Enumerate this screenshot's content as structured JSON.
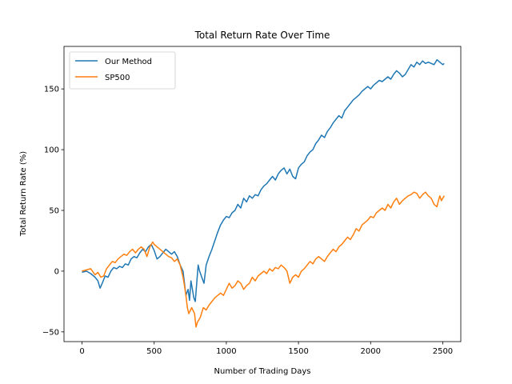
{
  "chart_data": {
    "type": "line",
    "title": "Total Return Rate Over Time",
    "xlabel": "Number of Trading Days",
    "ylabel": "Total Return Rate (%)",
    "xlim": [
      -125,
      2625
    ],
    "ylim": [
      -58,
      185
    ],
    "xticks": [
      0,
      500,
      1000,
      1500,
      2000,
      2500
    ],
    "yticks": [
      -50,
      0,
      50,
      100,
      150
    ],
    "grid": false,
    "legend_position": "top-left",
    "series": [
      {
        "name": "Our Method",
        "color": "#1f77b4",
        "points": [
          [
            0,
            -1
          ],
          [
            30,
            0
          ],
          [
            60,
            -2
          ],
          [
            90,
            -5
          ],
          [
            110,
            -8
          ],
          [
            125,
            -14
          ],
          [
            140,
            -10
          ],
          [
            160,
            -4
          ],
          [
            180,
            -5
          ],
          [
            200,
            0
          ],
          [
            220,
            3
          ],
          [
            240,
            2
          ],
          [
            260,
            4
          ],
          [
            280,
            3
          ],
          [
            300,
            6
          ],
          [
            320,
            5
          ],
          [
            340,
            10
          ],
          [
            360,
            12
          ],
          [
            380,
            11
          ],
          [
            400,
            15
          ],
          [
            420,
            18
          ],
          [
            440,
            16
          ],
          [
            460,
            20
          ],
          [
            480,
            22
          ],
          [
            500,
            17
          ],
          [
            520,
            10
          ],
          [
            540,
            12
          ],
          [
            560,
            15
          ],
          [
            580,
            18
          ],
          [
            600,
            16
          ],
          [
            620,
            14
          ],
          [
            640,
            16
          ],
          [
            660,
            12
          ],
          [
            680,
            5
          ],
          [
            700,
            0
          ],
          [
            710,
            -10
          ],
          [
            720,
            -20
          ],
          [
            735,
            -15
          ],
          [
            745,
            -24
          ],
          [
            755,
            -8
          ],
          [
            765,
            -15
          ],
          [
            775,
            -22
          ],
          [
            785,
            -25
          ],
          [
            795,
            -10
          ],
          [
            805,
            5
          ],
          [
            815,
            0
          ],
          [
            830,
            -5
          ],
          [
            845,
            -10
          ],
          [
            860,
            5
          ],
          [
            880,
            12
          ],
          [
            900,
            18
          ],
          [
            920,
            25
          ],
          [
            940,
            32
          ],
          [
            960,
            38
          ],
          [
            980,
            42
          ],
          [
            1000,
            45
          ],
          [
            1020,
            44
          ],
          [
            1040,
            48
          ],
          [
            1060,
            50
          ],
          [
            1080,
            55
          ],
          [
            1100,
            52
          ],
          [
            1120,
            60
          ],
          [
            1140,
            57
          ],
          [
            1160,
            62
          ],
          [
            1180,
            60
          ],
          [
            1200,
            63
          ],
          [
            1220,
            62
          ],
          [
            1240,
            67
          ],
          [
            1260,
            70
          ],
          [
            1280,
            72
          ],
          [
            1300,
            75
          ],
          [
            1320,
            78
          ],
          [
            1340,
            75
          ],
          [
            1360,
            80
          ],
          [
            1380,
            83
          ],
          [
            1400,
            85
          ],
          [
            1420,
            80
          ],
          [
            1440,
            84
          ],
          [
            1460,
            78
          ],
          [
            1480,
            76
          ],
          [
            1500,
            85
          ],
          [
            1520,
            88
          ],
          [
            1540,
            90
          ],
          [
            1560,
            95
          ],
          [
            1580,
            98
          ],
          [
            1600,
            100
          ],
          [
            1620,
            105
          ],
          [
            1640,
            108
          ],
          [
            1660,
            112
          ],
          [
            1680,
            110
          ],
          [
            1700,
            115
          ],
          [
            1720,
            118
          ],
          [
            1740,
            122
          ],
          [
            1760,
            125
          ],
          [
            1780,
            128
          ],
          [
            1800,
            126
          ],
          [
            1820,
            132
          ],
          [
            1840,
            135
          ],
          [
            1860,
            138
          ],
          [
            1880,
            141
          ],
          [
            1900,
            143
          ],
          [
            1920,
            145
          ],
          [
            1940,
            148
          ],
          [
            1960,
            150
          ],
          [
            1980,
            152
          ],
          [
            2000,
            150
          ],
          [
            2020,
            153
          ],
          [
            2040,
            155
          ],
          [
            2060,
            157
          ],
          [
            2080,
            156
          ],
          [
            2100,
            158
          ],
          [
            2120,
            160
          ],
          [
            2140,
            158
          ],
          [
            2160,
            162
          ],
          [
            2180,
            165
          ],
          [
            2200,
            163
          ],
          [
            2220,
            160
          ],
          [
            2240,
            162
          ],
          [
            2260,
            166
          ],
          [
            2280,
            170
          ],
          [
            2300,
            168
          ],
          [
            2320,
            172
          ],
          [
            2340,
            170
          ],
          [
            2360,
            173
          ],
          [
            2380,
            171
          ],
          [
            2400,
            172
          ],
          [
            2420,
            171
          ],
          [
            2440,
            170
          ],
          [
            2460,
            174
          ],
          [
            2480,
            172
          ],
          [
            2500,
            170
          ],
          [
            2510,
            171
          ]
        ]
      },
      {
        "name": "SP500",
        "color": "#ff7f0e",
        "points": [
          [
            0,
            0
          ],
          [
            30,
            1
          ],
          [
            60,
            2
          ],
          [
            90,
            -3
          ],
          [
            110,
            -1
          ],
          [
            130,
            -5
          ],
          [
            150,
            -4
          ],
          [
            170,
            2
          ],
          [
            190,
            5
          ],
          [
            210,
            8
          ],
          [
            230,
            7
          ],
          [
            250,
            10
          ],
          [
            270,
            12
          ],
          [
            290,
            14
          ],
          [
            310,
            13
          ],
          [
            330,
            16
          ],
          [
            350,
            18
          ],
          [
            370,
            15
          ],
          [
            390,
            18
          ],
          [
            410,
            20
          ],
          [
            430,
            18
          ],
          [
            450,
            12
          ],
          [
            470,
            20
          ],
          [
            490,
            24
          ],
          [
            500,
            22
          ],
          [
            520,
            20
          ],
          [
            540,
            18
          ],
          [
            560,
            16
          ],
          [
            580,
            14
          ],
          [
            600,
            12
          ],
          [
            620,
            11
          ],
          [
            640,
            8
          ],
          [
            660,
            10
          ],
          [
            680,
            5
          ],
          [
            700,
            -5
          ],
          [
            710,
            -12
          ],
          [
            720,
            -20
          ],
          [
            730,
            -30
          ],
          [
            740,
            -35
          ],
          [
            760,
            -30
          ],
          [
            780,
            -35
          ],
          [
            790,
            -46
          ],
          [
            800,
            -42
          ],
          [
            820,
            -38
          ],
          [
            840,
            -30
          ],
          [
            860,
            -32
          ],
          [
            880,
            -28
          ],
          [
            900,
            -25
          ],
          [
            920,
            -22
          ],
          [
            940,
            -20
          ],
          [
            960,
            -18
          ],
          [
            980,
            -20
          ],
          [
            1000,
            -15
          ],
          [
            1020,
            -10
          ],
          [
            1040,
            -14
          ],
          [
            1060,
            -12
          ],
          [
            1080,
            -8
          ],
          [
            1100,
            -10
          ],
          [
            1120,
            -15
          ],
          [
            1140,
            -12
          ],
          [
            1160,
            -10
          ],
          [
            1180,
            -5
          ],
          [
            1200,
            -8
          ],
          [
            1220,
            -4
          ],
          [
            1240,
            -2
          ],
          [
            1260,
            0
          ],
          [
            1280,
            -2
          ],
          [
            1300,
            2
          ],
          [
            1320,
            0
          ],
          [
            1340,
            3
          ],
          [
            1360,
            2
          ],
          [
            1380,
            5
          ],
          [
            1400,
            3
          ],
          [
            1420,
            0
          ],
          [
            1440,
            -10
          ],
          [
            1460,
            -5
          ],
          [
            1480,
            -3
          ],
          [
            1500,
            -5
          ],
          [
            1520,
            0
          ],
          [
            1540,
            2
          ],
          [
            1560,
            5
          ],
          [
            1580,
            8
          ],
          [
            1600,
            6
          ],
          [
            1620,
            10
          ],
          [
            1640,
            12
          ],
          [
            1660,
            10
          ],
          [
            1680,
            8
          ],
          [
            1700,
            12
          ],
          [
            1720,
            15
          ],
          [
            1740,
            18
          ],
          [
            1760,
            16
          ],
          [
            1780,
            20
          ],
          [
            1800,
            22
          ],
          [
            1820,
            25
          ],
          [
            1840,
            28
          ],
          [
            1860,
            26
          ],
          [
            1880,
            30
          ],
          [
            1900,
            35
          ],
          [
            1920,
            33
          ],
          [
            1940,
            38
          ],
          [
            1960,
            40
          ],
          [
            1980,
            42
          ],
          [
            2000,
            45
          ],
          [
            2020,
            44
          ],
          [
            2040,
            48
          ],
          [
            2060,
            50
          ],
          [
            2080,
            52
          ],
          [
            2100,
            50
          ],
          [
            2120,
            55
          ],
          [
            2140,
            52
          ],
          [
            2160,
            57
          ],
          [
            2180,
            60
          ],
          [
            2200,
            55
          ],
          [
            2220,
            58
          ],
          [
            2240,
            60
          ],
          [
            2260,
            62
          ],
          [
            2280,
            63
          ],
          [
            2300,
            65
          ],
          [
            2320,
            64
          ],
          [
            2340,
            60
          ],
          [
            2360,
            63
          ],
          [
            2380,
            65
          ],
          [
            2400,
            62
          ],
          [
            2420,
            60
          ],
          [
            2440,
            55
          ],
          [
            2460,
            53
          ],
          [
            2470,
            58
          ],
          [
            2480,
            62
          ],
          [
            2490,
            58
          ],
          [
            2500,
            60
          ],
          [
            2510,
            62
          ]
        ]
      }
    ]
  }
}
